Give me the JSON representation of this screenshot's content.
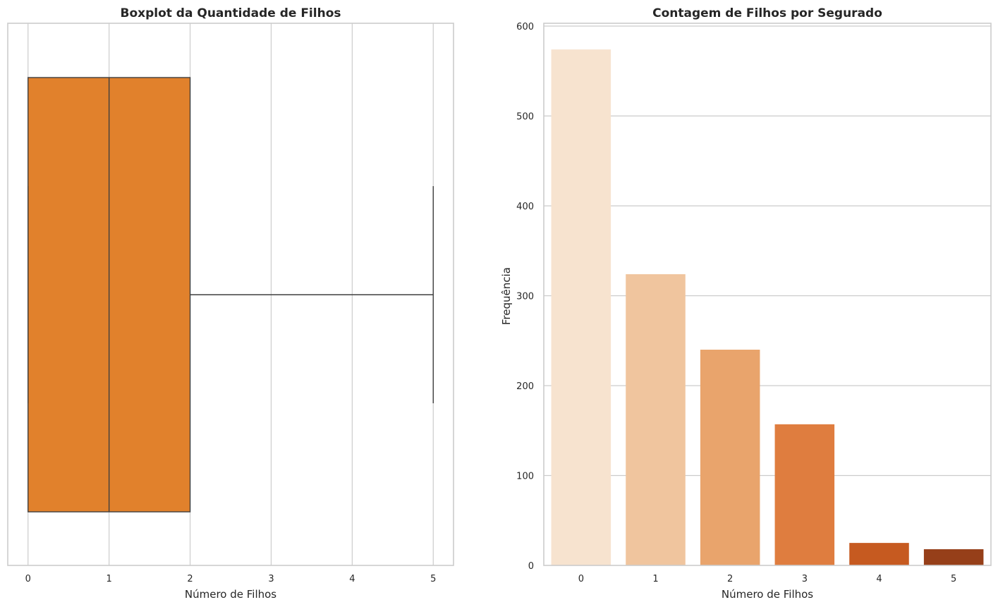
{
  "chart_data": [
    {
      "type": "boxplot",
      "title": "Boxplot da Quantidade de Filhos",
      "xlabel": "Número de Filhos",
      "ylabel": "",
      "xlim": [
        -0.25,
        5.25
      ],
      "xticks": [
        0,
        1,
        2,
        3,
        4,
        5
      ],
      "grid": true,
      "orientation": "horizontal",
      "box": {
        "min": 0,
        "q1": 0,
        "median": 1,
        "q3": 2,
        "max": 5
      },
      "colors": {
        "box": "#e1812c",
        "line": "#3f3f3f"
      }
    },
    {
      "type": "bar",
      "title": "Contagem de Filhos por Segurado",
      "xlabel": "Número de Filhos",
      "ylabel": "Frequência",
      "categories": [
        "0",
        "1",
        "2",
        "3",
        "4",
        "5"
      ],
      "values": [
        574,
        324,
        240,
        157,
        25,
        18
      ],
      "ylim": [
        0,
        600
      ],
      "yticks": [
        0,
        100,
        200,
        300,
        400,
        500,
        600
      ],
      "grid": true,
      "colors": [
        "#f7e3cf",
        "#f0c59e",
        "#e9a46c",
        "#df7d3f",
        "#c65a20",
        "#963f19"
      ]
    }
  ]
}
